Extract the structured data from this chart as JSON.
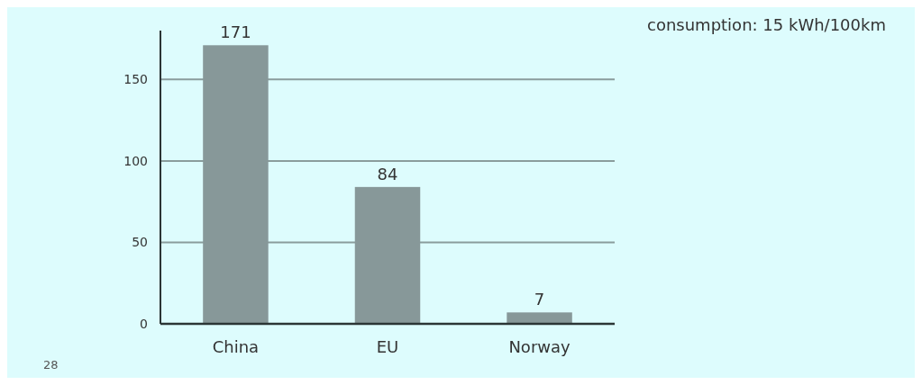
{
  "chart_data": {
    "type": "bar",
    "categories": [
      "China",
      "EU",
      "Norway"
    ],
    "values": [
      171,
      84,
      7
    ],
    "color": "#879899",
    "ylim": [
      0,
      180
    ],
    "yticks": [
      0,
      50,
      100,
      150
    ],
    "grid": "y",
    "data_labels": true,
    "annotations": [
      "consumption: 15 kWh/100km",
      "28"
    ]
  }
}
